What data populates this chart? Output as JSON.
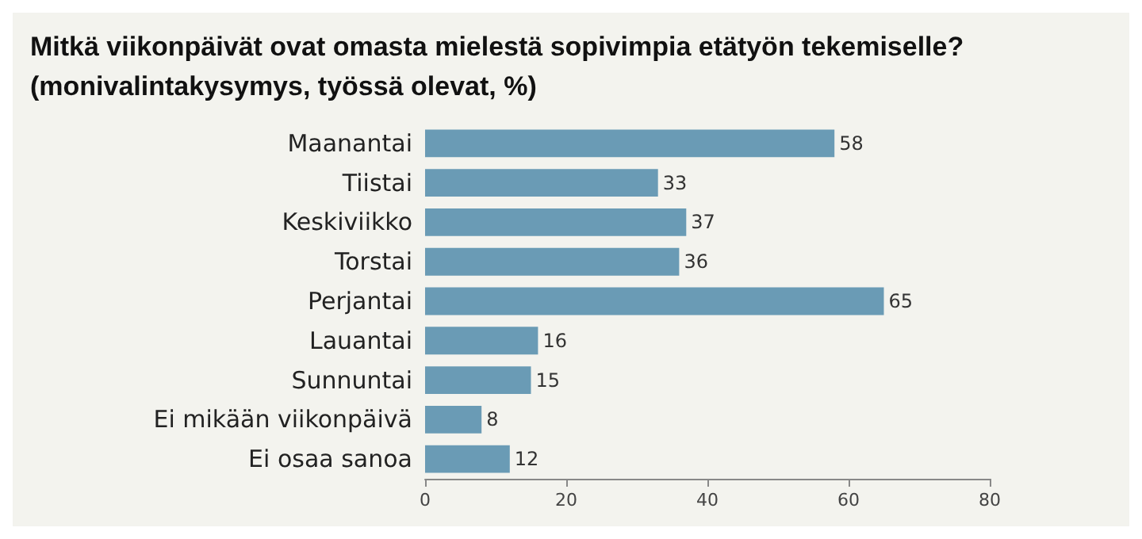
{
  "chart_data": {
    "type": "bar",
    "orientation": "horizontal",
    "title": "Mitkä viikonpäivät ovat omasta mielestä sopivimpia etätyön tekemiselle? (monivalintakysymys, työssä olevat, %)",
    "categories": [
      "Maanantai",
      "Tiistai",
      "Keskiviikko",
      "Torstai",
      "Perjantai",
      "Lauantai",
      "Sunnuntai",
      "Ei mikään viikonpäivä",
      "Ei osaa sanoa"
    ],
    "values": [
      58,
      33,
      37,
      36,
      65,
      16,
      15,
      8,
      12
    ],
    "color": "#6a9bb5",
    "xlim": [
      0,
      80
    ],
    "xticks": [
      0,
      20,
      40,
      60,
      80
    ],
    "grid": false,
    "data_labels": true
  }
}
